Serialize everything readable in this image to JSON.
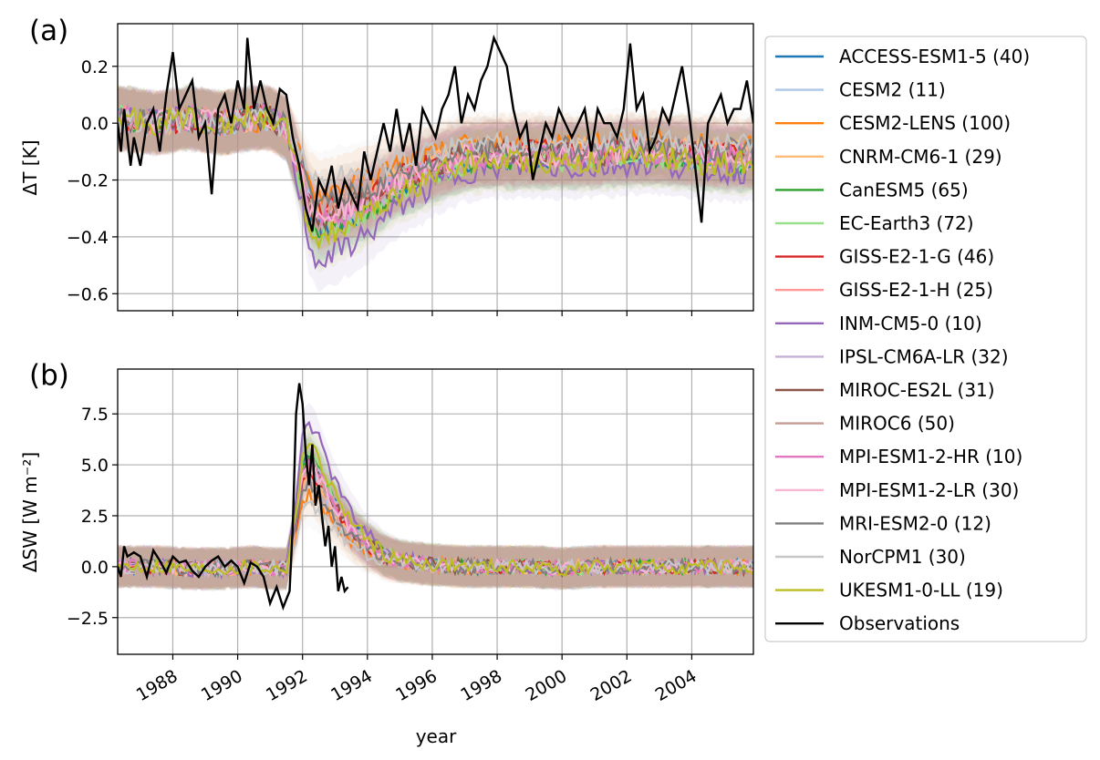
{
  "chart_data": [
    {
      "type": "line",
      "panel_label": "(a)",
      "ylabel": "ΔT [K]",
      "xlabel": "",
      "xlim": [
        1986.3,
        2005.9
      ],
      "ylim": [
        -0.66,
        0.35
      ],
      "grid": true,
      "yticks": [
        0.2,
        0.0,
        -0.2,
        -0.4,
        -0.6
      ],
      "ytick_labels": [
        "0.2",
        "0.0",
        "−0.2",
        "−0.4",
        "−0.6"
      ],
      "observations": {
        "name": "Observations",
        "x": [
          1986.3,
          1986.4,
          1986.5,
          1986.7,
          1986.8,
          1987.0,
          1987.2,
          1987.4,
          1987.6,
          1987.8,
          1988.0,
          1988.2,
          1988.4,
          1988.6,
          1988.8,
          1989.0,
          1989.2,
          1989.4,
          1989.6,
          1989.8,
          1990.0,
          1990.2,
          1990.3,
          1990.5,
          1990.7,
          1990.9,
          1991.1,
          1991.3,
          1991.5,
          1991.7,
          1991.9,
          1992.1,
          1992.3,
          1992.5,
          1992.7,
          1992.9,
          1993.1,
          1993.3,
          1993.5,
          1993.7,
          1993.9,
          1994.1,
          1994.3,
          1994.5,
          1994.7,
          1994.9,
          1995.1,
          1995.3,
          1995.5,
          1995.7,
          1995.9,
          1996.1,
          1996.3,
          1996.5,
          1996.7,
          1996.9,
          1997.1,
          1997.3,
          1997.5,
          1997.7,
          1997.9,
          1998.1,
          1998.3,
          1998.5,
          1998.7,
          1998.9,
          1999.1,
          1999.3,
          1999.5,
          1999.7,
          1999.9,
          2000.1,
          2000.3,
          2000.5,
          2000.7,
          2000.9,
          2001.1,
          2001.3,
          2001.5,
          2001.7,
          2001.9,
          2002.1,
          2002.3,
          2002.5,
          2002.7,
          2002.9,
          2003.1,
          2003.3,
          2003.5,
          2003.7,
          2003.9,
          2004.1,
          2004.3,
          2004.5,
          2004.7,
          2004.9,
          2005.1,
          2005.3,
          2005.5,
          2005.7,
          2005.9
        ],
        "y": [
          0.0,
          -0.1,
          0.05,
          -0.15,
          -0.05,
          -0.15,
          0.0,
          0.05,
          -0.1,
          0.1,
          0.25,
          0.05,
          0.1,
          0.15,
          -0.05,
          0.0,
          -0.25,
          0.05,
          0.1,
          0.0,
          0.15,
          0.05,
          0.3,
          0.05,
          0.15,
          0.05,
          0.0,
          0.12,
          0.1,
          -0.05,
          -0.15,
          -0.3,
          -0.38,
          -0.2,
          -0.25,
          -0.15,
          -0.3,
          -0.2,
          -0.25,
          -0.3,
          -0.1,
          -0.2,
          -0.1,
          0.0,
          -0.1,
          0.05,
          -0.1,
          0.0,
          -0.15,
          0.05,
          0.0,
          -0.05,
          0.05,
          0.1,
          0.2,
          0.0,
          0.1,
          0.05,
          0.15,
          0.2,
          0.3,
          0.25,
          0.2,
          0.05,
          -0.05,
          0.0,
          -0.2,
          -0.1,
          0.0,
          -0.05,
          0.05,
          0.0,
          -0.05,
          0.0,
          0.05,
          -0.1,
          0.05,
          0.0,
          0.0,
          -0.05,
          0.05,
          0.28,
          0.05,
          0.1,
          -0.1,
          -0.05,
          0.05,
          0.0,
          0.1,
          0.2,
          0.05,
          -0.15,
          -0.35,
          0.0,
          0.05,
          0.1,
          0.0,
          0.05,
          0.05,
          0.15,
          0.0
        ]
      },
      "ensemble_shape": {
        "x": [
          1986.3,
          1987.5,
          1988.5,
          1989.5,
          1990.5,
          1991.0,
          1991.5,
          1991.9,
          1992.2,
          1992.5,
          1992.8,
          1993.2,
          1993.6,
          1994.0,
          1994.5,
          1995.0,
          1995.5,
          1996.0,
          1997.0,
          1998.0,
          1999.0,
          2000.0,
          2001.0,
          2002.0,
          2003.0,
          2004.0,
          2005.0,
          2005.9
        ],
        "y": [
          0.02,
          0.0,
          0.02,
          0.0,
          0.02,
          0.02,
          -0.02,
          -0.18,
          -0.32,
          -0.38,
          -0.36,
          -0.34,
          -0.32,
          -0.3,
          -0.26,
          -0.22,
          -0.2,
          -0.17,
          -0.13,
          -0.12,
          -0.12,
          -0.12,
          -0.12,
          -0.11,
          -0.11,
          -0.12,
          -0.13,
          -0.13
        ]
      }
    },
    {
      "type": "line",
      "panel_label": "(b)",
      "ylabel": "ΔSW [W m⁻²]",
      "xlabel": "year",
      "xlim": [
        1986.3,
        2005.9
      ],
      "ylim": [
        -4.3,
        9.7
      ],
      "grid": true,
      "yticks": [
        7.5,
        5.0,
        2.5,
        0.0,
        -2.5
      ],
      "ytick_labels": [
        "7.5",
        "5.0",
        "2.5",
        "0.0",
        "−2.5"
      ],
      "observations": {
        "name": "Observations",
        "x": [
          1986.3,
          1986.4,
          1986.5,
          1986.6,
          1986.8,
          1987.0,
          1987.2,
          1987.4,
          1987.6,
          1987.8,
          1988.0,
          1988.2,
          1988.4,
          1988.6,
          1988.8,
          1989.0,
          1989.2,
          1989.4,
          1989.6,
          1989.8,
          1990.0,
          1990.2,
          1990.4,
          1990.6,
          1990.8,
          1991.0,
          1991.2,
          1991.4,
          1991.6,
          1991.7,
          1991.8,
          1991.9,
          1992.0,
          1992.1,
          1992.2,
          1992.3,
          1992.4,
          1992.5,
          1992.6,
          1992.7,
          1992.8,
          1992.9,
          1993.0,
          1993.1,
          1993.2,
          1993.3,
          1993.4
        ],
        "y": [
          0.0,
          -0.5,
          1.0,
          0.5,
          0.7,
          0.5,
          -0.5,
          0.8,
          0.3,
          -0.3,
          0.5,
          0.2,
          0.3,
          -0.2,
          -0.5,
          0.0,
          0.3,
          0.5,
          0.0,
          0.3,
          0.0,
          -0.8,
          0.2,
          0.0,
          -0.5,
          -1.8,
          -1.0,
          -2.0,
          -1.2,
          2.0,
          7.5,
          9.0,
          8.0,
          5.5,
          4.0,
          6.0,
          3.0,
          4.0,
          2.5,
          1.0,
          2.0,
          0.0,
          1.0,
          -1.2,
          -0.5,
          -1.2,
          -1.0
        ]
      },
      "ensemble_shape": {
        "x": [
          1986.3,
          1987.5,
          1988.5,
          1989.5,
          1990.5,
          1991.0,
          1991.5,
          1991.8,
          1992.0,
          1992.2,
          1992.5,
          1992.8,
          1993.1,
          1993.5,
          1994.0,
          1994.5,
          1995.0,
          1996.0,
          1997.0,
          1998.0,
          1999.0,
          2000.0,
          2001.0,
          2002.0,
          2003.0,
          2004.0,
          2005.0,
          2005.9
        ],
        "y": [
          0.0,
          0.0,
          -0.1,
          -0.1,
          0.0,
          -0.1,
          -0.1,
          2.5,
          5.0,
          5.5,
          4.8,
          3.8,
          3.0,
          2.0,
          1.2,
          0.6,
          0.3,
          0.1,
          0.0,
          0.0,
          0.0,
          -0.1,
          0.0,
          0.0,
          0.0,
          0.0,
          0.0,
          0.0
        ]
      }
    }
  ],
  "xaxis": {
    "label": "year",
    "ticks": [
      1988,
      1990,
      1992,
      1994,
      1996,
      1998,
      2000,
      2002,
      2004
    ],
    "tick_labels": [
      "1988",
      "1990",
      "1992",
      "1994",
      "1996",
      "1998",
      "2000",
      "2002",
      "2004"
    ]
  },
  "legend": {
    "placement": "right, outside",
    "entries": [
      {
        "label": "ACCESS-ESM1-5 (40)",
        "color": "#1f77b4",
        "response_scale": 1.0
      },
      {
        "label": "CESM2 (11)",
        "color": "#aec7e8",
        "response_scale": 0.85
      },
      {
        "label": "CESM2-LENS (100)",
        "color": "#ff7f0e",
        "response_scale": 0.65
      },
      {
        "label": "CNRM-CM6-1 (29)",
        "color": "#ffbb78",
        "response_scale": 0.8
      },
      {
        "label": "CanESM5 (65)",
        "color": "#2ca02c",
        "response_scale": 1.0
      },
      {
        "label": "EC-Earth3 (72)",
        "color": "#98df8a",
        "response_scale": 1.05
      },
      {
        "label": "GISS-E2-1-G (46)",
        "color": "#d62728",
        "response_scale": 0.85
      },
      {
        "label": "GISS-E2-1-H (25)",
        "color": "#ff9896",
        "response_scale": 0.9
      },
      {
        "label": "INM-CM5-0 (10)",
        "color": "#9467bd",
        "response_scale": 1.3
      },
      {
        "label": "IPSL-CM6A-LR (32)",
        "color": "#c5b0d5",
        "response_scale": 0.95
      },
      {
        "label": "MIROC-ES2L (31)",
        "color": "#8c564b",
        "response_scale": 0.9
      },
      {
        "label": "MIROC6 (50)",
        "color": "#c49c94",
        "response_scale": 0.9
      },
      {
        "label": "MPI-ESM1-2-HR (10)",
        "color": "#e377c2",
        "response_scale": 0.95
      },
      {
        "label": "MPI-ESM1-2-LR (30)",
        "color": "#f7b6d2",
        "response_scale": 0.9
      },
      {
        "label": "MRI-ESM2-0 (12)",
        "color": "#7f7f7f",
        "response_scale": 0.75
      },
      {
        "label": "NorCPM1 (30)",
        "color": "#c7c7c7",
        "response_scale": 0.55
      },
      {
        "label": "UKESM1-0-LL (19)",
        "color": "#bcbd22",
        "response_scale": 1.1
      },
      {
        "label": "Observations",
        "color": "#000000"
      }
    ]
  }
}
